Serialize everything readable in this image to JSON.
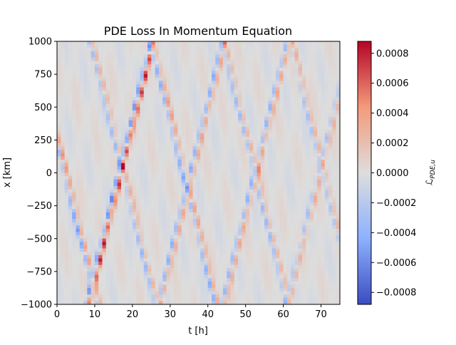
{
  "chart_data": {
    "type": "heatmap",
    "title": "PDE Loss In Momentum Equation",
    "xlabel": "t [h]",
    "ylabel": "x [km]",
    "colorbar_label": "ℒPDE,u",
    "colorbar_label_main": "ℒ",
    "colorbar_label_sub": "PDE,u",
    "xlim": [
      0,
      75
    ],
    "ylim": [
      -1000,
      1000
    ],
    "clim": [
      -0.00088,
      0.00088
    ],
    "colormap": "coolwarm",
    "grid": false,
    "x_ticks": [
      {
        "value": 0,
        "label": "0"
      },
      {
        "value": 10,
        "label": "10"
      },
      {
        "value": 20,
        "label": "20"
      },
      {
        "value": 30,
        "label": "30"
      },
      {
        "value": 40,
        "label": "40"
      },
      {
        "value": 50,
        "label": "50"
      },
      {
        "value": 60,
        "label": "60"
      },
      {
        "value": 70,
        "label": "70"
      }
    ],
    "y_ticks": [
      {
        "value": 1000,
        "label": "1000"
      },
      {
        "value": 750,
        "label": "750"
      },
      {
        "value": 500,
        "label": "500"
      },
      {
        "value": 250,
        "label": "250"
      },
      {
        "value": 0,
        "label": "0"
      },
      {
        "value": -250,
        "label": "−250"
      },
      {
        "value": -500,
        "label": "−500"
      },
      {
        "value": -750,
        "label": "−750"
      },
      {
        "value": -1000,
        "label": "−1000"
      }
    ],
    "colorbar_ticks": [
      {
        "value": 0.0008,
        "label": "0.0008"
      },
      {
        "value": 0.0006,
        "label": "0.0006"
      },
      {
        "value": 0.0004,
        "label": "0.0004"
      },
      {
        "value": 0.0002,
        "label": "0.0002"
      },
      {
        "value": 0.0,
        "label": "0.0000"
      },
      {
        "value": -0.0002,
        "label": "−0.0002"
      },
      {
        "value": -0.0004,
        "label": "−0.0004"
      },
      {
        "value": -0.0006,
        "label": "−0.0006"
      },
      {
        "value": -0.0008,
        "label": "−0.0008"
      }
    ],
    "grid_shape": [
      75,
      80
    ],
    "wave_speed_km_per_h": 116,
    "bands": [
      {
        "origin_x": 250,
        "t_start": 0,
        "t_end": 17,
        "direction": -1,
        "amplitude_blue": -0.00055,
        "amplitude_red": 0.00045
      },
      {
        "origin_x": -1000,
        "t_start": 8,
        "t_end": 26,
        "direction": 1,
        "amplitude_blue": -0.0007,
        "amplitude_red": 0.00085
      },
      {
        "origin_x": 1000,
        "t_start": 9,
        "t_end": 27,
        "direction": -1,
        "amplitude_blue": -0.0004,
        "amplitude_red": 0.0003
      },
      {
        "origin_x": 1000,
        "t_start": 25,
        "t_end": 43,
        "direction": -1,
        "amplitude_blue": -0.0005,
        "amplitude_red": 0.0004
      },
      {
        "origin_x": -1000,
        "t_start": 27,
        "t_end": 45,
        "direction": 1,
        "amplitude_blue": -0.0005,
        "amplitude_red": 0.0004
      },
      {
        "origin_x": 1000,
        "t_start": 44,
        "t_end": 62,
        "direction": -1,
        "amplitude_blue": -0.0004,
        "amplitude_red": 0.0003
      },
      {
        "origin_x": -1000,
        "t_start": 44,
        "t_end": 62,
        "direction": 1,
        "amplitude_blue": -0.00045,
        "amplitude_red": 0.0004
      },
      {
        "origin_x": 1000,
        "t_start": 62,
        "t_end": 75,
        "direction": -1,
        "amplitude_blue": -0.0003,
        "amplitude_red": 0.0003
      },
      {
        "origin_x": -1000,
        "t_start": 61,
        "t_end": 75,
        "direction": 1,
        "amplitude_blue": -0.0003,
        "amplitude_red": 0.0003
      }
    ]
  }
}
